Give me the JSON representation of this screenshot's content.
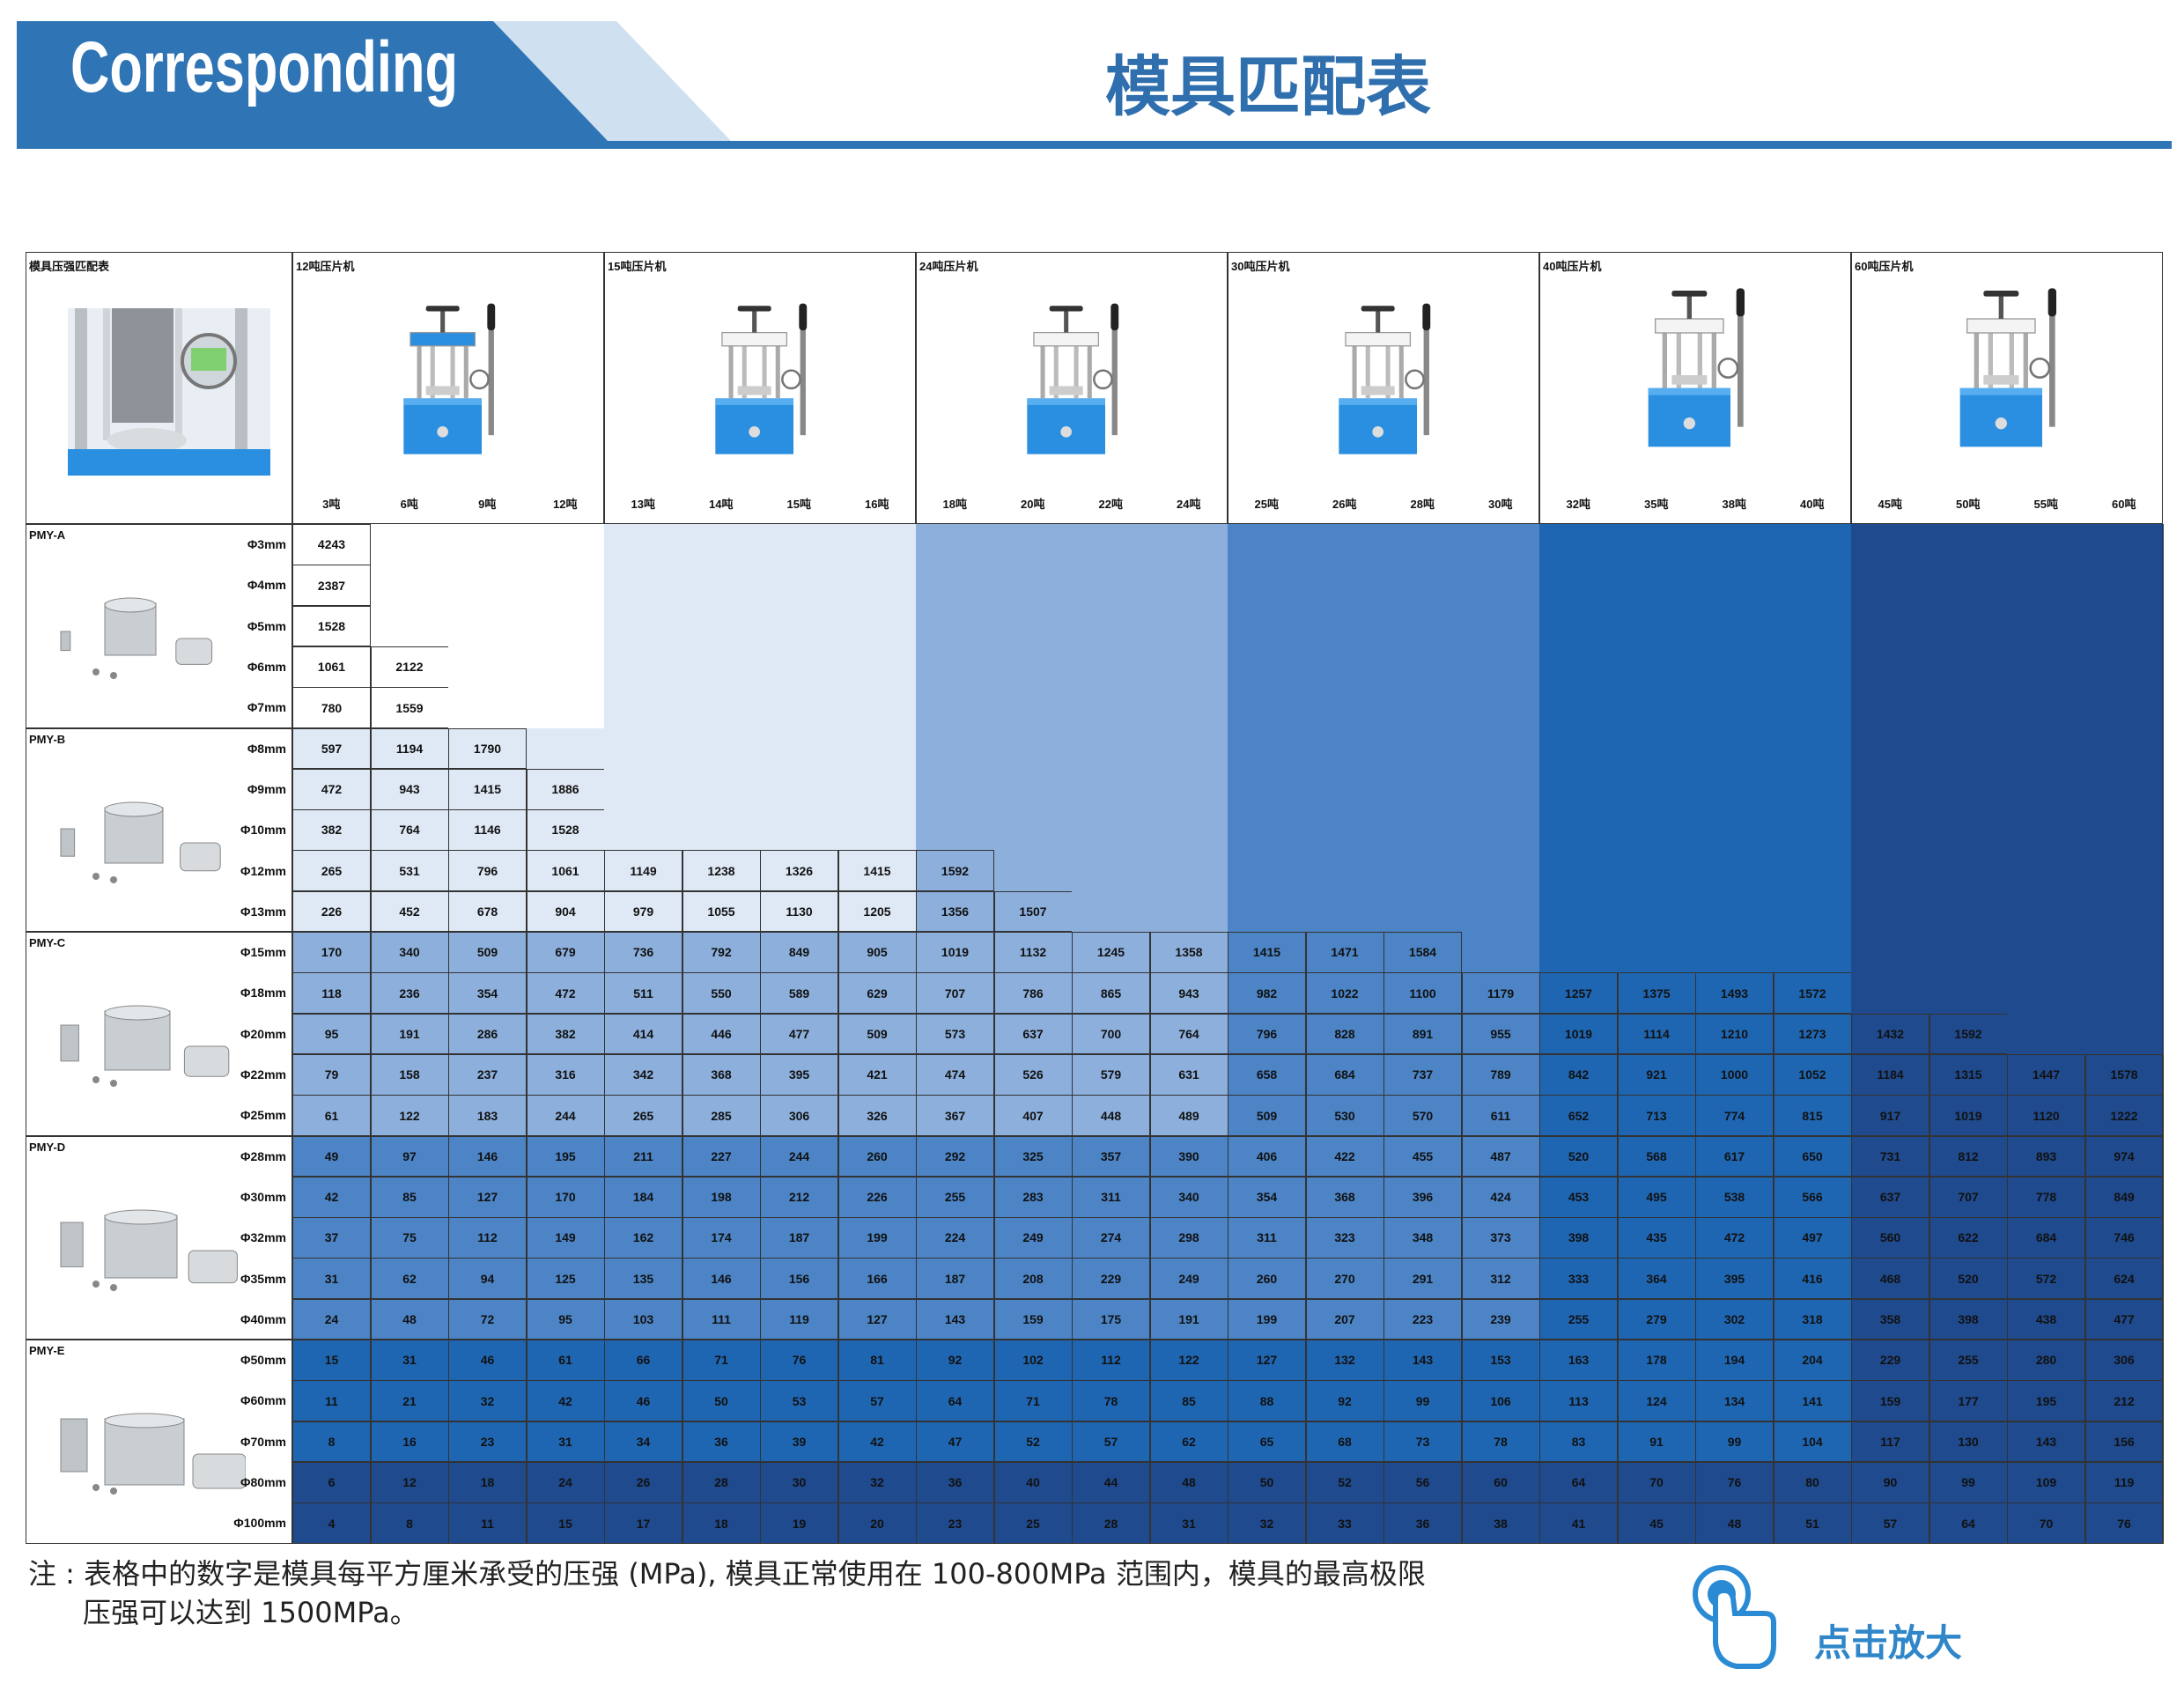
{
  "header": {
    "title_en": "Corresponding",
    "title_cn": "模具匹配表"
  },
  "table": {
    "corner": "模具压强匹配表",
    "machines": [
      {
        "name": "12吨压片机",
        "tonnages": [
          "3吨",
          "6吨",
          "9吨",
          "12吨"
        ]
      },
      {
        "name": "15吨压片机",
        "tonnages": [
          "13吨",
          "14吨",
          "15吨",
          "16吨"
        ]
      },
      {
        "name": "24吨压片机",
        "tonnages": [
          "18吨",
          "20吨",
          "22吨",
          "24吨"
        ]
      },
      {
        "name": "30吨压片机",
        "tonnages": [
          "25吨",
          "26吨",
          "28吨",
          "30吨"
        ]
      },
      {
        "name": "40吨压片机",
        "tonnages": [
          "32吨",
          "35吨",
          "38吨",
          "40吨"
        ]
      },
      {
        "name": "60吨压片机",
        "tonnages": [
          "45吨",
          "50吨",
          "55吨",
          "60吨"
        ]
      }
    ],
    "groups": [
      {
        "name": "PMY-A",
        "rows": [
          {
            "diameter": "Φ3mm",
            "values": [
              4243
            ]
          },
          {
            "diameter": "Φ4mm",
            "values": [
              2387
            ]
          },
          {
            "diameter": "Φ5mm",
            "values": [
              1528
            ]
          },
          {
            "diameter": "Φ6mm",
            "values": [
              1061,
              2122
            ]
          },
          {
            "diameter": "Φ7mm",
            "values": [
              780,
              1559
            ]
          }
        ]
      },
      {
        "name": "PMY-B",
        "rows": [
          {
            "diameter": "Φ8mm",
            "values": [
              597,
              1194,
              1790
            ]
          },
          {
            "diameter": "Φ9mm",
            "values": [
              472,
              943,
              1415,
              1886
            ]
          },
          {
            "diameter": "Φ10mm",
            "values": [
              382,
              764,
              1146,
              1528
            ]
          },
          {
            "diameter": "Φ12mm",
            "values": [
              265,
              531,
              796,
              1061,
              1149,
              1238,
              1326,
              1415,
              1592
            ]
          },
          {
            "diameter": "Φ13mm",
            "values": [
              226,
              452,
              678,
              904,
              979,
              1055,
              1130,
              1205,
              1356,
              1507
            ]
          }
        ]
      },
      {
        "name": "PMY-C",
        "rows": [
          {
            "diameter": "Φ15mm",
            "values": [
              170,
              340,
              509,
              679,
              736,
              792,
              849,
              905,
              1019,
              1132,
              1245,
              1358,
              1415,
              1471,
              1584
            ]
          },
          {
            "diameter": "Φ18mm",
            "values": [
              118,
              236,
              354,
              472,
              511,
              550,
              589,
              629,
              707,
              786,
              865,
              943,
              982,
              1022,
              1100,
              1179,
              1257,
              1375,
              1493,
              1572
            ]
          },
          {
            "diameter": "Φ20mm",
            "values": [
              95,
              191,
              286,
              382,
              414,
              446,
              477,
              509,
              573,
              637,
              700,
              764,
              796,
              828,
              891,
              955,
              1019,
              1114,
              1210,
              1273,
              1432,
              1592
            ]
          },
          {
            "diameter": "Φ22mm",
            "values": [
              79,
              158,
              237,
              316,
              342,
              368,
              395,
              421,
              474,
              526,
              579,
              631,
              658,
              684,
              737,
              789,
              842,
              921,
              1000,
              1052,
              1184,
              1315,
              1447,
              1578
            ]
          },
          {
            "diameter": "Φ25mm",
            "values": [
              61,
              122,
              183,
              244,
              265,
              285,
              306,
              326,
              367,
              407,
              448,
              489,
              509,
              530,
              570,
              611,
              652,
              713,
              774,
              815,
              917,
              1019,
              1120,
              1222
            ]
          }
        ]
      },
      {
        "name": "PMY-D",
        "rows": [
          {
            "diameter": "Φ28mm",
            "values": [
              49,
              97,
              146,
              195,
              211,
              227,
              244,
              260,
              292,
              325,
              357,
              390,
              406,
              422,
              455,
              487,
              520,
              568,
              617,
              650,
              731,
              812,
              893,
              974
            ]
          },
          {
            "diameter": "Φ30mm",
            "values": [
              42,
              85,
              127,
              170,
              184,
              198,
              212,
              226,
              255,
              283,
              311,
              340,
              354,
              368,
              396,
              424,
              453,
              495,
              538,
              566,
              637,
              707,
              778,
              849
            ]
          },
          {
            "diameter": "Φ32mm",
            "values": [
              37,
              75,
              112,
              149,
              162,
              174,
              187,
              199,
              224,
              249,
              274,
              298,
              311,
              323,
              348,
              373,
              398,
              435,
              472,
              497,
              560,
              622,
              684,
              746
            ]
          },
          {
            "diameter": "Φ35mm",
            "values": [
              31,
              62,
              94,
              125,
              135,
              146,
              156,
              166,
              187,
              208,
              229,
              249,
              260,
              270,
              291,
              312,
              333,
              364,
              395,
              416,
              468,
              520,
              572,
              624
            ]
          },
          {
            "diameter": "Φ40mm",
            "values": [
              24,
              48,
              72,
              95,
              103,
              111,
              119,
              127,
              143,
              159,
              175,
              191,
              199,
              207,
              223,
              239,
              255,
              279,
              302,
              318,
              358,
              398,
              438,
              477
            ]
          }
        ]
      },
      {
        "name": "PMY-E",
        "rows": [
          {
            "diameter": "Φ50mm",
            "values": [
              15,
              31,
              46,
              61,
              66,
              71,
              76,
              81,
              92,
              102,
              112,
              122,
              127,
              132,
              143,
              153,
              163,
              178,
              194,
              204,
              229,
              255,
              280,
              306
            ]
          },
          {
            "diameter": "Φ60mm",
            "values": [
              11,
              21,
              32,
              42,
              46,
              50,
              53,
              57,
              64,
              71,
              78,
              85,
              88,
              92,
              99,
              106,
              113,
              124,
              134,
              141,
              159,
              177,
              195,
              212
            ]
          },
          {
            "diameter": "Φ70mm",
            "values": [
              8,
              16,
              23,
              31,
              34,
              36,
              39,
              42,
              47,
              52,
              57,
              62,
              65,
              68,
              73,
              78,
              83,
              91,
              99,
              104,
              117,
              130,
              143,
              156
            ]
          },
          {
            "diameter": "Φ80mm",
            "values": [
              6,
              12,
              18,
              24,
              26,
              28,
              30,
              32,
              36,
              40,
              44,
              48,
              50,
              52,
              56,
              60,
              64,
              70,
              76,
              80,
              90,
              99,
              109,
              119
            ]
          },
          {
            "diameter": "Φ100mm",
            "values": [
              4,
              8,
              11,
              15,
              17,
              18,
              19,
              20,
              23,
              25,
              28,
              31,
              32,
              33,
              36,
              38,
              41,
              45,
              48,
              51,
              57,
              64,
              70,
              76
            ]
          }
        ]
      }
    ]
  },
  "note": {
    "label": "注 :",
    "lines": [
      "表格中的数字是模具每平方厘米承受的压强 (MPa), 模具正常使用在 100-800MPa 范围内，模具的最高极限",
      "压强可以达到 1500MPa。"
    ]
  },
  "button": "点击放大"
}
